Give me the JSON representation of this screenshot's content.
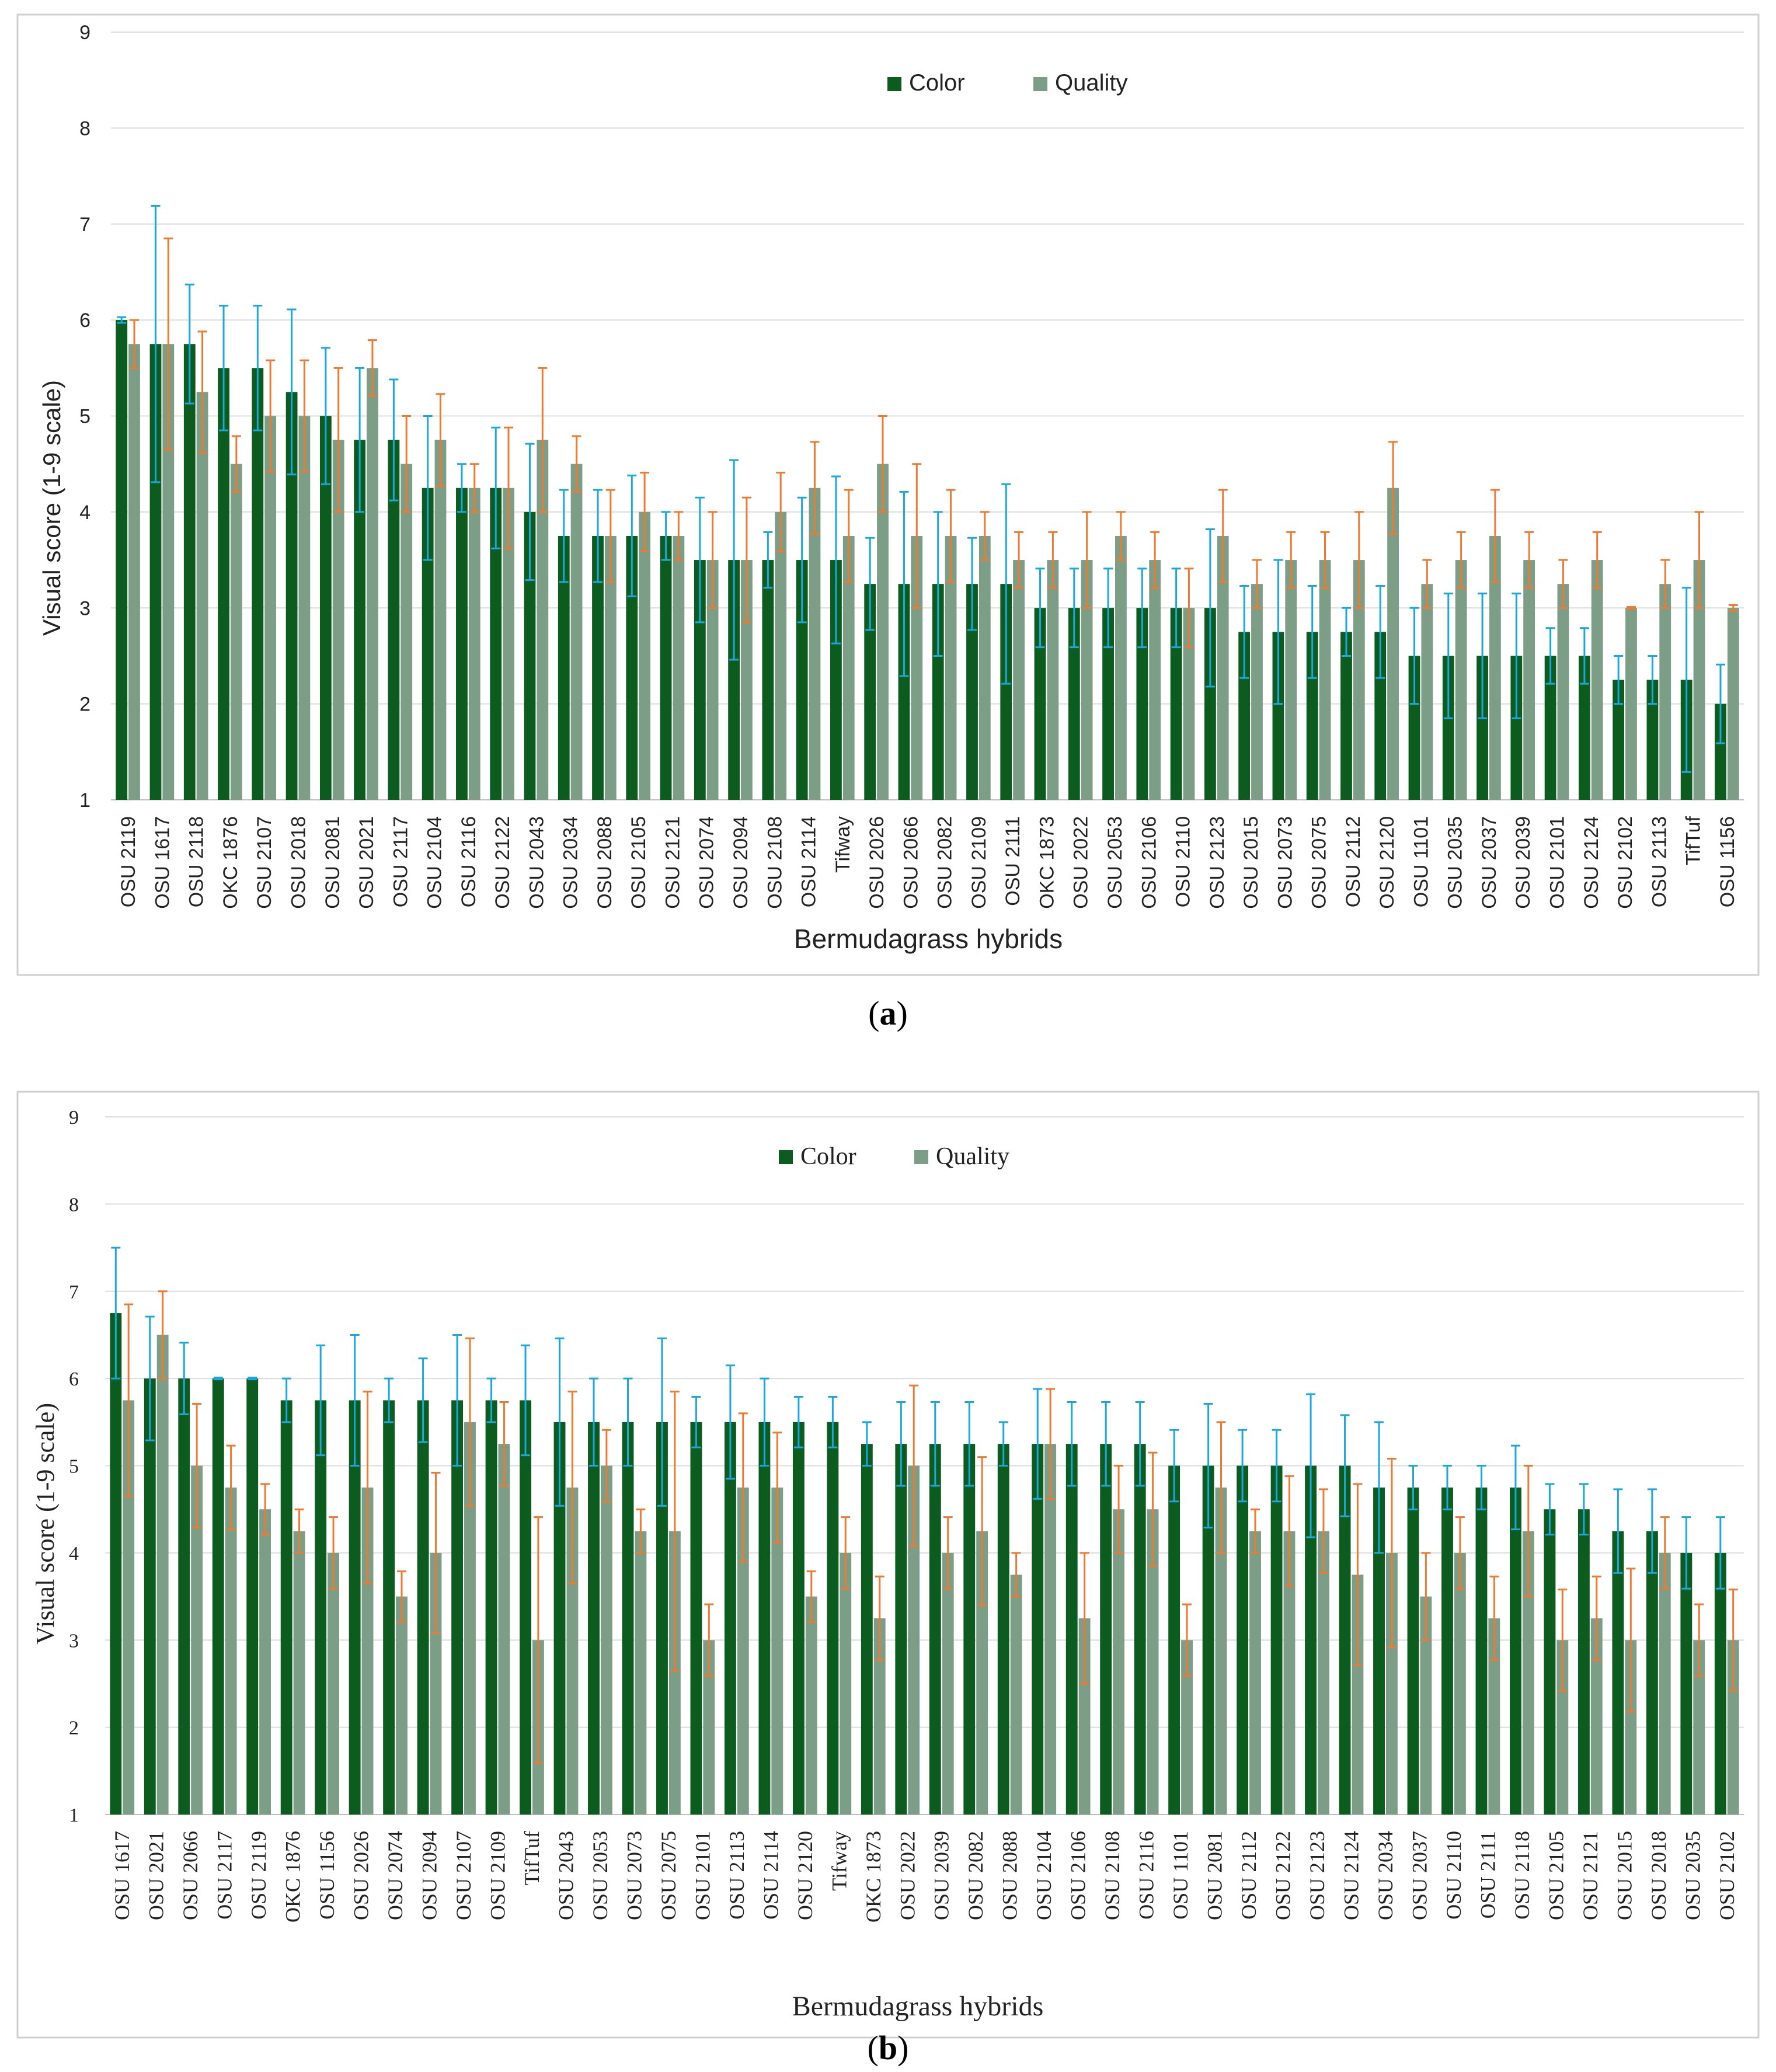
{
  "colors": {
    "color": "#0b5c1e",
    "quality": "#7d9e86",
    "err_color": "#1aa7e0",
    "err_quality": "#ee7a32",
    "grid": "#dcdcdc",
    "frame": "#cfcfcf"
  },
  "chart_data": [
    {
      "type": "bar",
      "panel_label": "a",
      "legend_position": "top-center",
      "ylabel": "Visual score (1-9 scale)",
      "xlabel": "Bermudagrass hybrids",
      "ylim": [
        1,
        9
      ],
      "yticks": [
        "1",
        "2",
        "3",
        "4",
        "5",
        "6",
        "7",
        "8",
        "9"
      ],
      "categories": [
        "OSU 2119",
        "OSU 1617",
        "OSU 2118",
        "OKC 1876",
        "OSU 2107",
        "OSU 2018",
        "OSU 2081",
        "OSU 2021",
        "OSU 2117",
        "OSU 2104",
        "OSU 2116",
        "OSU 2122",
        "OSU 2043",
        "OSU 2034",
        "OSU 2088",
        "OSU 2105",
        "OSU 2121",
        "OSU 2074",
        "OSU 2094",
        "OSU 2108",
        "OSU 2114",
        "Tifway",
        "OSU 2026",
        "OSU 2066",
        "OSU 2082",
        "OSU 2109",
        "OSU 2111",
        "OKC 1873",
        "OSU 2022",
        "OSU 2053",
        "OSU 2106",
        "OSU 2110",
        "OSU 2123",
        "OSU 2015",
        "OSU 2073",
        "OSU 2075",
        "OSU 2112",
        "OSU 2120",
        "OSU 1101",
        "OSU 2035",
        "OSU 2037",
        "OSU 2039",
        "OSU 2101",
        "OSU 2124",
        "OSU 2102",
        "OSU 2113",
        "TifTuf",
        "OSU 1156"
      ],
      "series": [
        {
          "name": "Color",
          "values": [
            6.0,
            5.75,
            5.75,
            5.5,
            5.5,
            5.25,
            5.0,
            4.75,
            4.75,
            4.25,
            4.25,
            4.25,
            4.0,
            3.75,
            3.75,
            3.75,
            3.75,
            3.5,
            3.5,
            3.5,
            3.5,
            3.5,
            3.25,
            3.25,
            3.25,
            3.25,
            3.25,
            3.0,
            3.0,
            3.0,
            3.0,
            3.0,
            3.0,
            2.75,
            2.75,
            2.75,
            2.75,
            2.75,
            2.5,
            2.5,
            2.5,
            2.5,
            2.5,
            2.5,
            2.25,
            2.25,
            2.25,
            2.0
          ],
          "errors": [
            0.03,
            1.44,
            0.62,
            0.65,
            0.65,
            0.86,
            0.71,
            0.75,
            0.63,
            0.75,
            0.25,
            0.63,
            0.71,
            0.48,
            0.48,
            0.63,
            0.25,
            0.65,
            1.04,
            0.29,
            0.65,
            0.87,
            0.48,
            0.96,
            0.75,
            0.48,
            1.04,
            0.41,
            0.41,
            0.41,
            0.41,
            0.41,
            0.82,
            0.48,
            0.75,
            0.48,
            0.25,
            0.48,
            0.5,
            0.65,
            0.65,
            0.65,
            0.29,
            0.29,
            0.25,
            0.25,
            0.96,
            0.41
          ]
        },
        {
          "name": "Quality",
          "values": [
            5.75,
            5.75,
            5.25,
            4.5,
            5.0,
            5.0,
            4.75,
            5.5,
            4.5,
            4.75,
            4.25,
            4.25,
            4.75,
            4.5,
            3.75,
            4.0,
            3.75,
            3.5,
            3.5,
            4.0,
            4.25,
            3.75,
            4.5,
            3.75,
            3.75,
            3.75,
            3.5,
            3.5,
            3.5,
            3.75,
            3.5,
            3.0,
            3.75,
            3.25,
            3.5,
            3.5,
            3.5,
            4.25,
            3.25,
            3.5,
            3.75,
            3.5,
            3.25,
            3.5,
            3.0,
            3.25,
            3.5,
            3.0
          ],
          "errors": [
            0.25,
            1.1,
            0.63,
            0.29,
            0.58,
            0.58,
            0.75,
            0.29,
            0.5,
            0.48,
            0.25,
            0.63,
            0.75,
            0.29,
            0.48,
            0.41,
            0.25,
            0.5,
            0.65,
            0.41,
            0.48,
            0.48,
            0.5,
            0.75,
            0.48,
            0.25,
            0.29,
            0.29,
            0.5,
            0.25,
            0.29,
            0.41,
            0.48,
            0.25,
            0.29,
            0.29,
            0.5,
            0.48,
            0.25,
            0.29,
            0.48,
            0.29,
            0.25,
            0.29,
            0.01,
            0.25,
            0.5,
            0.03
          ]
        }
      ]
    },
    {
      "type": "bar",
      "panel_label": "b",
      "legend_position": "top-center",
      "ylabel": "Visual score (1-9 scale)",
      "xlabel": "Bermudagrass hybrids",
      "ylim": [
        1,
        9
      ],
      "yticks": [
        "1",
        "2",
        "3",
        "4",
        "5",
        "6",
        "7",
        "8",
        "9"
      ],
      "categories": [
        "OSU 1617",
        "OSU 2021",
        "OSU 2066",
        "OSU 2117",
        "OSU 2119",
        "OKC 1876",
        "OSU 1156",
        "OSU 2026",
        "OSU 2074",
        "OSU 2094",
        "OSU 2107",
        "OSU 2109",
        "TifTuf",
        "OSU 2043",
        "OSU 2053",
        "OSU 2073",
        "OSU 2075",
        "OSU 2101",
        "OSU 2113",
        "OSU 2114",
        "OSU 2120",
        "Tifway",
        "OKC 1873",
        "OSU 2022",
        "OSU 2039",
        "OSU 2082",
        "OSU 2088",
        "OSU 2104",
        "OSU 2106",
        "OSU 2108",
        "OSU 2116",
        "OSU 1101",
        "OSU 2081",
        "OSU 2112",
        "OSU 2122",
        "OSU 2123",
        "OSU 2124",
        "OSU 2034",
        "OSU 2037",
        "OSU 2110",
        "OSU 2111",
        "OSU 2118",
        "OSU 2105",
        "OSU 2121",
        "OSU 2015",
        "OSU 2018",
        "OSU 2035",
        "OSU 2102"
      ],
      "series": [
        {
          "name": "Color",
          "values": [
            6.75,
            6.0,
            6.0,
            6.0,
            6.0,
            5.75,
            5.75,
            5.75,
            5.75,
            5.75,
            5.75,
            5.75,
            5.75,
            5.5,
            5.5,
            5.5,
            5.5,
            5.5,
            5.5,
            5.5,
            5.5,
            5.5,
            5.25,
            5.25,
            5.25,
            5.25,
            5.25,
            5.25,
            5.25,
            5.25,
            5.25,
            5.0,
            5.0,
            5.0,
            5.0,
            5.0,
            5.0,
            4.75,
            4.75,
            4.75,
            4.75,
            4.75,
            4.5,
            4.5,
            4.25,
            4.25,
            4.0,
            4.0
          ],
          "errors": [
            0.75,
            0.71,
            0.41,
            0.01,
            0.01,
            0.25,
            0.63,
            0.75,
            0.25,
            0.48,
            0.75,
            0.25,
            0.63,
            0.96,
            0.5,
            0.5,
            0.96,
            0.29,
            0.65,
            0.5,
            0.29,
            0.29,
            0.25,
            0.48,
            0.48,
            0.48,
            0.25,
            0.63,
            0.48,
            0.48,
            0.48,
            0.41,
            0.71,
            0.41,
            0.41,
            0.82,
            0.58,
            0.75,
            0.25,
            0.25,
            0.25,
            0.48,
            0.29,
            0.29,
            0.48,
            0.48,
            0.41,
            0.41
          ]
        },
        {
          "name": "Quality",
          "values": [
            5.75,
            6.5,
            5.0,
            4.75,
            4.5,
            4.25,
            4.0,
            4.75,
            3.5,
            4.0,
            5.5,
            5.25,
            3.0,
            4.75,
            5.0,
            4.25,
            4.25,
            3.0,
            4.75,
            4.75,
            3.5,
            4.0,
            3.25,
            5.0,
            4.0,
            4.25,
            3.75,
            5.25,
            3.25,
            4.5,
            4.5,
            3.0,
            4.75,
            4.25,
            4.25,
            4.25,
            3.75,
            4.0,
            3.5,
            4.0,
            3.25,
            4.25,
            3.0,
            3.25,
            3.0,
            4.0,
            3.0,
            3.0
          ],
          "errors": [
            1.1,
            0.5,
            0.71,
            0.48,
            0.29,
            0.25,
            0.41,
            1.1,
            0.29,
            0.92,
            0.96,
            0.48,
            1.41,
            1.1,
            0.41,
            0.25,
            1.6,
            0.41,
            0.85,
            0.63,
            0.29,
            0.41,
            0.48,
            0.92,
            0.41,
            0.85,
            0.25,
            0.63,
            0.75,
            0.5,
            0.65,
            0.41,
            0.75,
            0.25,
            0.63,
            0.48,
            1.04,
            1.08,
            0.5,
            0.41,
            0.48,
            0.75,
            0.58,
            0.48,
            0.82,
            0.41,
            0.41,
            0.58
          ]
        }
      ]
    }
  ]
}
